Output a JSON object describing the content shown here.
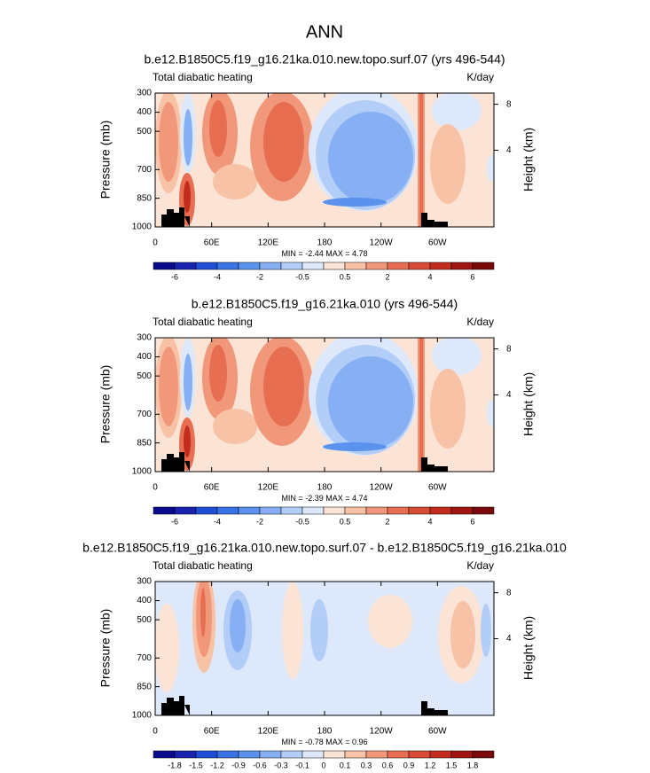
{
  "page_title": "ANN",
  "chart_data": [
    {
      "type": "contour",
      "title": "b.e12.B1850C5.f19_g16.21ka.010.new.topo.surf.07 (yrs 496-544)",
      "left_string": "Total diabatic heating",
      "right_string": "K/day",
      "ylabel": "Pressure (mb)",
      "y2label": "Height (km)",
      "xlim": [
        0,
        360
      ],
      "xticks": [
        0,
        {
          "value": 60,
          "label": "60E"
        },
        {
          "value": 120,
          "label": "120E"
        },
        180,
        {
          "value": 240,
          "label": "120W"
        },
        {
          "value": 300,
          "label": "60W"
        }
      ],
      "ylim": [
        1000,
        300
      ],
      "yticks": [
        300,
        400,
        500,
        700,
        850,
        1000
      ],
      "y2ticks": [
        8,
        4
      ],
      "min_label": "MIN =",
      "min": -2.44,
      "max_label": "MAX =",
      "max": 4.78,
      "levels": [
        -6,
        -5,
        -4,
        -3,
        -2,
        -1,
        -0.5,
        0,
        0.5,
        1,
        2,
        3,
        4,
        5,
        6
      ],
      "label_every": 2,
      "colors": [
        "#0a0a8c",
        "#1a23b0",
        "#1f4fd6",
        "#3a73e6",
        "#5b92ee",
        "#86b0f3",
        "#b2cdf7",
        "#dde9fa",
        "#fbe4d6",
        "#f8c2a6",
        "#f2987a",
        "#e86e52",
        "#d94b34",
        "#c22c1f",
        "#a01512",
        "#7a0a0a"
      ]
    },
    {
      "type": "contour",
      "title": "b.e12.B1850C5.f19_g16.21ka.010 (yrs 496-544)",
      "left_string": "Total diabatic heating",
      "right_string": "K/day",
      "ylabel": "Pressure (mb)",
      "y2label": "Height (km)",
      "xlim": [
        0,
        360
      ],
      "xticks": [
        0,
        {
          "value": 60,
          "label": "60E"
        },
        {
          "value": 120,
          "label": "120E"
        },
        180,
        {
          "value": 240,
          "label": "120W"
        },
        {
          "value": 300,
          "label": "60W"
        }
      ],
      "ylim": [
        1000,
        300
      ],
      "yticks": [
        300,
        400,
        500,
        700,
        850,
        1000
      ],
      "y2ticks": [
        8,
        4
      ],
      "min_label": "MIN =",
      "min": -2.39,
      "max_label": "MAX =",
      "max": 4.74,
      "levels": [
        -6,
        -5,
        -4,
        -3,
        -2,
        -1,
        -0.5,
        0,
        0.5,
        1,
        2,
        3,
        4,
        5,
        6
      ],
      "label_every": 2,
      "colors": [
        "#0a0a8c",
        "#1a23b0",
        "#1f4fd6",
        "#3a73e6",
        "#5b92ee",
        "#86b0f3",
        "#b2cdf7",
        "#dde9fa",
        "#fbe4d6",
        "#f8c2a6",
        "#f2987a",
        "#e86e52",
        "#d94b34",
        "#c22c1f",
        "#a01512",
        "#7a0a0a"
      ]
    },
    {
      "type": "contour",
      "title": "b.e12.B1850C5.f19_g16.21ka.010.new.topo.surf.07 - b.e12.B1850C5.f19_g16.21ka.010",
      "left_string": "Total diabatic heating",
      "right_string": "K/day",
      "ylabel": "Pressure (mb)",
      "y2label": "Height (km)",
      "xlim": [
        0,
        360
      ],
      "xticks": [
        0,
        {
          "value": 60,
          "label": "60E"
        },
        {
          "value": 120,
          "label": "120E"
        },
        180,
        {
          "value": 240,
          "label": "120W"
        },
        {
          "value": 300,
          "label": "60W"
        }
      ],
      "ylim": [
        1000,
        300
      ],
      "yticks": [
        300,
        400,
        500,
        700,
        850,
        1000
      ],
      "y2ticks": [
        8,
        4
      ],
      "min_label": "MIN =",
      "min": -0.78,
      "max_label": "MAX =",
      "max": 0.96,
      "levels": [
        -1.8,
        -1.5,
        -1.2,
        -0.9,
        -0.6,
        -0.3,
        -0.1,
        0,
        0.1,
        0.3,
        0.6,
        0.9,
        1.2,
        1.5,
        1.8
      ],
      "label_every": 1,
      "colors": [
        "#0a0a8c",
        "#1a23b0",
        "#1f4fd6",
        "#3a73e6",
        "#5b92ee",
        "#86b0f3",
        "#b2cdf7",
        "#dde9fa",
        "#fbe4d6",
        "#f8c2a6",
        "#f2987a",
        "#e86e52",
        "#d94b34",
        "#c22c1f",
        "#a01512",
        "#7a0a0a"
      ]
    }
  ]
}
